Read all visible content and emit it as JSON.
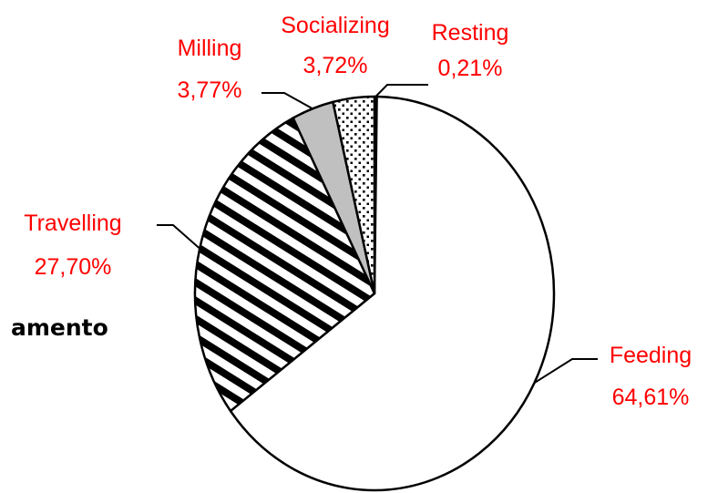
{
  "side_text": "amento",
  "chart_data": {
    "type": "pie",
    "title": "",
    "legend": "none",
    "label_color": "#ff0000",
    "slices": [
      {
        "name": "Resting",
        "value_label": "0,21%",
        "value": 0.21,
        "fill": "solid-white"
      },
      {
        "name": "Feeding",
        "value_label": "64,61%",
        "value": 64.61,
        "fill": "solid-white"
      },
      {
        "name": "Travelling",
        "value_label": "27,70%",
        "value": 27.7,
        "fill": "diagonal-stripes"
      },
      {
        "name": "Milling",
        "value_label": "3,77%",
        "value": 3.77,
        "fill": "solid-gray"
      },
      {
        "name": "Socializing",
        "value_label": "3,72%",
        "value": 3.72,
        "fill": "dotted"
      }
    ]
  }
}
